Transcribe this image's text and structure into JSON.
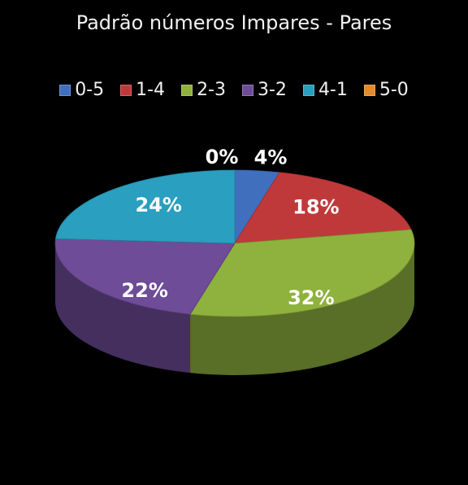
{
  "chart_data": {
    "type": "pie",
    "title": "Padrão números Impares - Pares",
    "categories": [
      "0-5",
      "1-4",
      "2-3",
      "3-2",
      "4-1",
      "5-0"
    ],
    "values": [
      4,
      18,
      32,
      22,
      24,
      0
    ],
    "data_labels": [
      "4%",
      "18%",
      "32%",
      "22%",
      "24%",
      "0%"
    ],
    "colors": [
      "#3f6fbd",
      "#c0393a",
      "#8fb13e",
      "#6e4c97",
      "#2a9fbf",
      "#e58a2c"
    ],
    "legend_position": "top",
    "style": "3d"
  }
}
